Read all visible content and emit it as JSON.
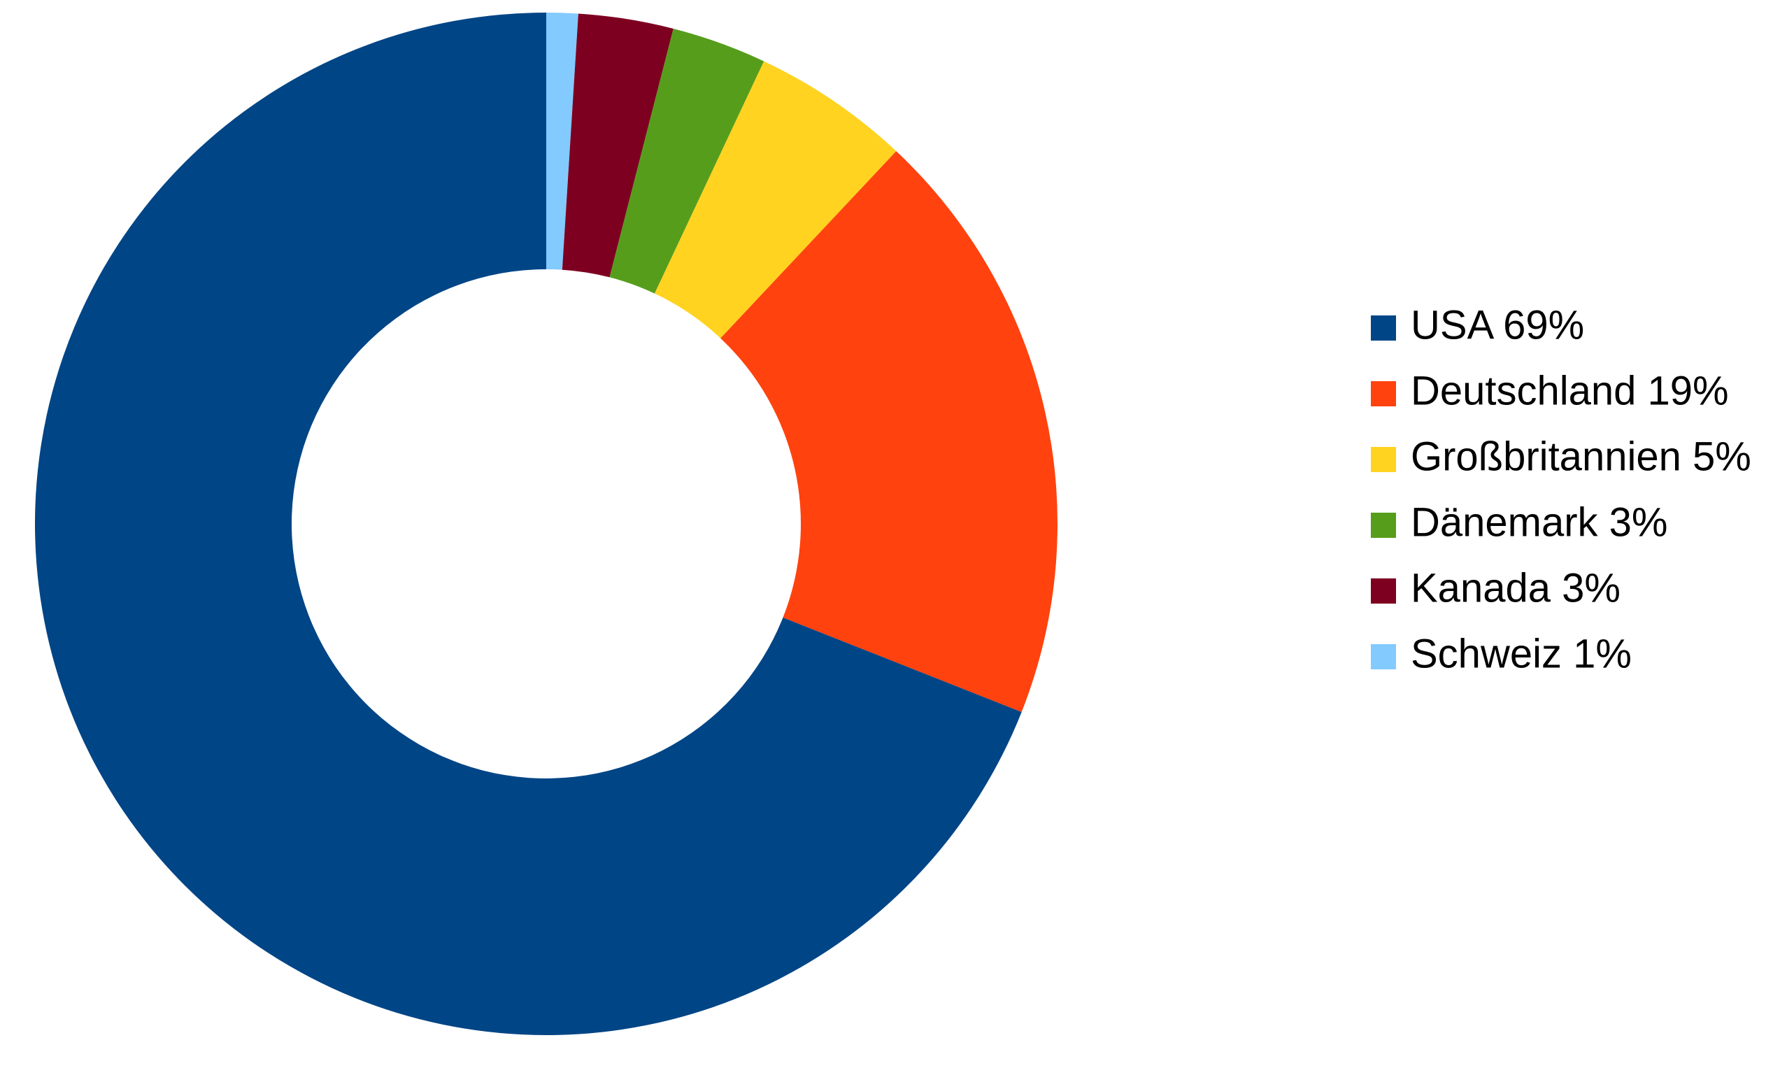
{
  "chart_data": {
    "type": "donut",
    "categories": [
      "USA 69%",
      "Deutschland 19%",
      "Großbritannien 5%",
      "Dänemark 3%",
      "Kanada 3%",
      "Schweiz 1%"
    ],
    "values": [
      69,
      19,
      5,
      3,
      3,
      1
    ],
    "colors": [
      "#004586",
      "#ff420e",
      "#ffd320",
      "#579d1c",
      "#7e0021",
      "#83caff"
    ],
    "legend": "right"
  }
}
